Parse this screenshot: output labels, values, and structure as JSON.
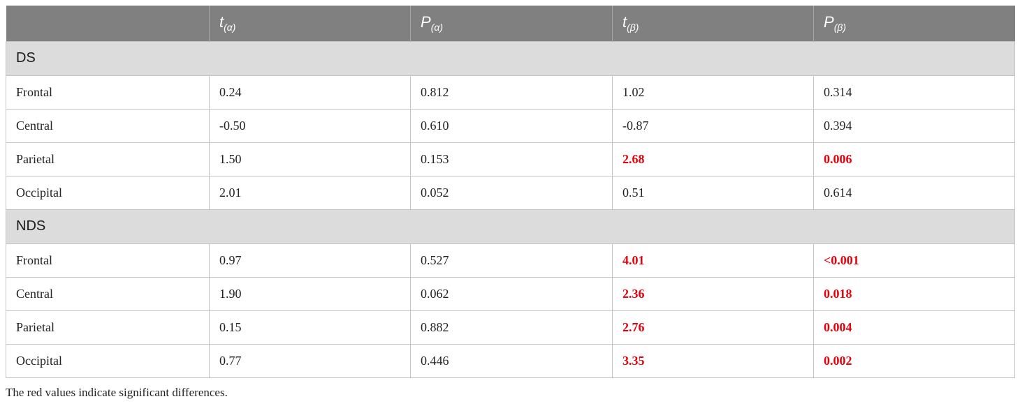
{
  "table": {
    "header": [
      {
        "sym": "",
        "sub": ""
      },
      {
        "sym": "t",
        "sub": "(α)"
      },
      {
        "sym": "P",
        "sub": "(α)"
      },
      {
        "sym": "t",
        "sub": "(β)"
      },
      {
        "sym": "P",
        "sub": "(β)"
      }
    ],
    "groups": [
      {
        "label": "DS",
        "rows": [
          {
            "region": "Frontal",
            "cells": [
              {
                "v": "0.24",
                "sig": false
              },
              {
                "v": "0.812",
                "sig": false
              },
              {
                "v": "1.02",
                "sig": false
              },
              {
                "v": "0.314",
                "sig": false
              }
            ]
          },
          {
            "region": "Central",
            "cells": [
              {
                "v": "-0.50",
                "sig": false
              },
              {
                "v": "0.610",
                "sig": false
              },
              {
                "v": "-0.87",
                "sig": false
              },
              {
                "v": "0.394",
                "sig": false
              }
            ]
          },
          {
            "region": "Parietal",
            "cells": [
              {
                "v": "1.50",
                "sig": false
              },
              {
                "v": "0.153",
                "sig": false
              },
              {
                "v": "2.68",
                "sig": true
              },
              {
                "v": "0.006",
                "sig": true
              }
            ]
          },
          {
            "region": "Occipital",
            "cells": [
              {
                "v": "2.01",
                "sig": false
              },
              {
                "v": "0.052",
                "sig": false
              },
              {
                "v": "0.51",
                "sig": false
              },
              {
                "v": "0.614",
                "sig": false
              }
            ]
          }
        ]
      },
      {
        "label": "NDS",
        "rows": [
          {
            "region": "Frontal",
            "cells": [
              {
                "v": "0.97",
                "sig": false
              },
              {
                "v": "0.527",
                "sig": false
              },
              {
                "v": "4.01",
                "sig": true
              },
              {
                "v": "<0.001",
                "sig": true
              }
            ]
          },
          {
            "region": "Central",
            "cells": [
              {
                "v": "1.90",
                "sig": false
              },
              {
                "v": "0.062",
                "sig": false
              },
              {
                "v": "2.36",
                "sig": true
              },
              {
                "v": "0.018",
                "sig": true
              }
            ]
          },
          {
            "region": "Parietal",
            "cells": [
              {
                "v": "0.15",
                "sig": false
              },
              {
                "v": "0.882",
                "sig": false
              },
              {
                "v": "2.76",
                "sig": true
              },
              {
                "v": "0.004",
                "sig": true
              }
            ]
          },
          {
            "region": "Occipital",
            "cells": [
              {
                "v": "0.77",
                "sig": false
              },
              {
                "v": "0.446",
                "sig": false
              },
              {
                "v": "3.35",
                "sig": true
              },
              {
                "v": "0.002",
                "sig": true
              }
            ]
          }
        ]
      }
    ]
  },
  "colors": {
    "header_bg": "#808080",
    "group_bg": "#dcdcdc",
    "significant": "#e8000b"
  },
  "footnote": "The red values indicate significant differences."
}
